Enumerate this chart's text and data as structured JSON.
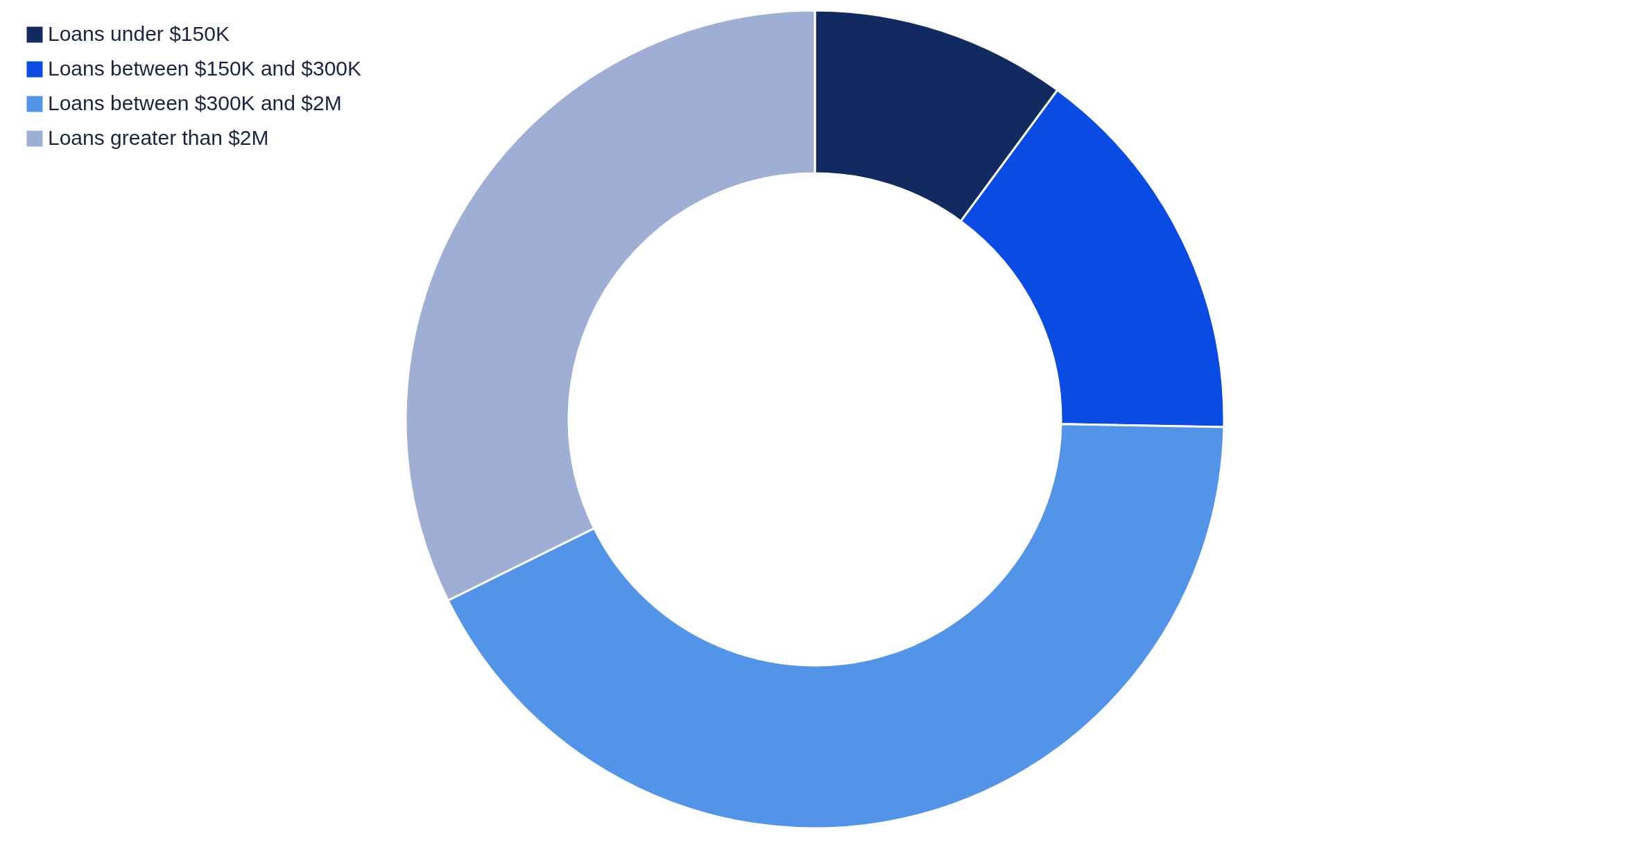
{
  "chart_data": {
    "type": "donut",
    "categories": [
      "Loans under $150K",
      "Loans between $150K and $300K",
      "Loans between $300K and $2M",
      "Loans greater than $2M"
    ],
    "values": [
      10.1,
      15.2,
      42.4,
      32.3
    ],
    "colors": [
      "#112b60",
      "#0a4be3",
      "#5194e8",
      "#9eaed5"
    ],
    "legend": "top left"
  }
}
